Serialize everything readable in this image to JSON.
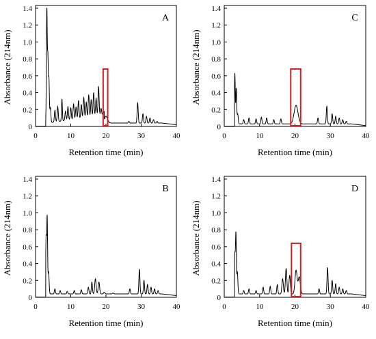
{
  "chart_data": [
    {
      "type": "line",
      "panel_label": "A",
      "xlabel": "Retention time (min)",
      "ylabel": "Absorbance (214nm)",
      "xlim": [
        0,
        40
      ],
      "ylim": [
        0,
        1.4
      ],
      "xticks": [
        "0",
        "10",
        "20",
        "30",
        "40"
      ],
      "yticks": [
        "0",
        "0.2",
        "0.4",
        "0.6",
        "0.8",
        "1.0",
        "1.2",
        "1.4"
      ],
      "grid": false,
      "baseline": 0.04,
      "peaks": [
        {
          "rt": 3.2,
          "h": 1.4,
          "w": 0.12
        },
        {
          "rt": 3.5,
          "h": 0.8,
          "w": 0.12
        },
        {
          "rt": 3.8,
          "h": 0.55,
          "w": 0.12
        },
        {
          "rt": 4.2,
          "h": 0.22,
          "w": 0.15
        },
        {
          "rt": 5.5,
          "h": 0.18,
          "w": 0.15
        },
        {
          "rt": 6.3,
          "h": 0.22,
          "w": 0.15
        },
        {
          "rt": 7.5,
          "h": 0.3,
          "w": 0.12
        },
        {
          "rt": 8.5,
          "h": 0.15,
          "w": 0.15
        },
        {
          "rt": 9.2,
          "h": 0.2,
          "w": 0.15
        },
        {
          "rt": 10.0,
          "h": 0.18,
          "w": 0.15
        },
        {
          "rt": 10.8,
          "h": 0.22,
          "w": 0.15
        },
        {
          "rt": 11.5,
          "h": 0.18,
          "w": 0.15
        },
        {
          "rt": 12.2,
          "h": 0.25,
          "w": 0.15
        },
        {
          "rt": 13.0,
          "h": 0.2,
          "w": 0.15
        },
        {
          "rt": 13.7,
          "h": 0.28,
          "w": 0.15
        },
        {
          "rt": 14.4,
          "h": 0.22,
          "w": 0.15
        },
        {
          "rt": 15.1,
          "h": 0.3,
          "w": 0.15
        },
        {
          "rt": 15.8,
          "h": 0.24,
          "w": 0.15
        },
        {
          "rt": 16.5,
          "h": 0.32,
          "w": 0.15
        },
        {
          "rt": 17.2,
          "h": 0.25,
          "w": 0.15
        },
        {
          "rt": 17.9,
          "h": 0.38,
          "w": 0.15
        },
        {
          "rt": 18.6,
          "h": 0.12,
          "w": 0.15
        },
        {
          "rt": 20.0,
          "h": 0.12,
          "w": 0.45
        },
        {
          "rt": 26.5,
          "h": 0.06,
          "w": 0.15
        },
        {
          "rt": 29.0,
          "h": 0.28,
          "w": 0.15
        },
        {
          "rt": 30.5,
          "h": 0.15,
          "w": 0.15
        },
        {
          "rt": 31.5,
          "h": 0.12,
          "w": 0.15
        },
        {
          "rt": 32.5,
          "h": 0.1,
          "w": 0.15
        },
        {
          "rt": 33.5,
          "h": 0.08,
          "w": 0.15
        },
        {
          "rt": 34.5,
          "h": 0.06,
          "w": 0.15
        }
      ],
      "highlight": {
        "x0": 19.2,
        "x1": 20.5,
        "y0": 0,
        "y1": 0.68
      },
      "highlight_color": "#d22020"
    },
    {
      "type": "line",
      "panel_label": "C",
      "xlabel": "Retention time (min)",
      "ylabel": "Absorbance (214nm)",
      "xlim": [
        0,
        40
      ],
      "ylim": [
        0,
        1.4
      ],
      "xticks": [
        "0",
        "10",
        "20",
        "30",
        "40"
      ],
      "yticks": [
        "0",
        "0.2",
        "0.4",
        "0.6",
        "0.8",
        "1.0",
        "1.2",
        "1.4"
      ],
      "grid": false,
      "baseline": 0.03,
      "peaks": [
        {
          "rt": 3.0,
          "h": 0.63,
          "w": 0.12
        },
        {
          "rt": 3.4,
          "h": 0.45,
          "w": 0.12
        },
        {
          "rt": 3.8,
          "h": 0.15,
          "w": 0.15
        },
        {
          "rt": 5.5,
          "h": 0.08,
          "w": 0.15
        },
        {
          "rt": 7.0,
          "h": 0.1,
          "w": 0.15
        },
        {
          "rt": 9.0,
          "h": 0.09,
          "w": 0.15
        },
        {
          "rt": 10.5,
          "h": 0.11,
          "w": 0.15
        },
        {
          "rt": 12.0,
          "h": 0.1,
          "w": 0.15
        },
        {
          "rt": 14.0,
          "h": 0.08,
          "w": 0.15
        },
        {
          "rt": 16.0,
          "h": 0.09,
          "w": 0.15
        },
        {
          "rt": 20.3,
          "h": 0.25,
          "w": 0.55
        },
        {
          "rt": 26.5,
          "h": 0.1,
          "w": 0.15
        },
        {
          "rt": 29.0,
          "h": 0.24,
          "w": 0.15
        },
        {
          "rt": 30.5,
          "h": 0.15,
          "w": 0.15
        },
        {
          "rt": 31.5,
          "h": 0.12,
          "w": 0.15
        },
        {
          "rt": 32.5,
          "h": 0.1,
          "w": 0.15
        },
        {
          "rt": 33.5,
          "h": 0.08,
          "w": 0.15
        },
        {
          "rt": 34.5,
          "h": 0.06,
          "w": 0.15
        }
      ],
      "highlight": {
        "x0": 18.8,
        "x1": 21.6,
        "y0": 0,
        "y1": 0.68
      },
      "highlight_color": "#d22020"
    },
    {
      "type": "line",
      "panel_label": "B",
      "xlabel": "Retention time (min)",
      "ylabel": "Absorbance (214nm)",
      "xlim": [
        0,
        40
      ],
      "ylim": [
        0,
        1.4
      ],
      "xticks": [
        "0",
        "10",
        "20",
        "30",
        "40"
      ],
      "yticks": [
        "0",
        "0.2",
        "0.4",
        "0.6",
        "0.8",
        "1.0",
        "1.2",
        "1.4"
      ],
      "grid": false,
      "baseline": 0.04,
      "peaks": [
        {
          "rt": 3.0,
          "h": 0.7,
          "w": 0.12
        },
        {
          "rt": 3.3,
          "h": 0.94,
          "w": 0.12
        },
        {
          "rt": 3.7,
          "h": 0.3,
          "w": 0.15
        },
        {
          "rt": 5.5,
          "h": 0.1,
          "w": 0.15
        },
        {
          "rt": 7.0,
          "h": 0.08,
          "w": 0.15
        },
        {
          "rt": 9.0,
          "h": 0.07,
          "w": 0.15
        },
        {
          "rt": 11.0,
          "h": 0.08,
          "w": 0.15
        },
        {
          "rt": 13.0,
          "h": 0.09,
          "w": 0.15
        },
        {
          "rt": 15.0,
          "h": 0.12,
          "w": 0.15
        },
        {
          "rt": 16.0,
          "h": 0.18,
          "w": 0.15
        },
        {
          "rt": 17.0,
          "h": 0.22,
          "w": 0.2
        },
        {
          "rt": 18.0,
          "h": 0.18,
          "w": 0.2
        },
        {
          "rt": 19.5,
          "h": 0.06,
          "w": 0.2
        },
        {
          "rt": 22.0,
          "h": 0.05,
          "w": 0.2
        },
        {
          "rt": 26.8,
          "h": 0.1,
          "w": 0.15
        },
        {
          "rt": 29.5,
          "h": 0.33,
          "w": 0.15
        },
        {
          "rt": 30.8,
          "h": 0.2,
          "w": 0.15
        },
        {
          "rt": 31.8,
          "h": 0.15,
          "w": 0.15
        },
        {
          "rt": 32.8,
          "h": 0.12,
          "w": 0.15
        },
        {
          "rt": 33.8,
          "h": 0.1,
          "w": 0.15
        },
        {
          "rt": 34.8,
          "h": 0.08,
          "w": 0.15
        }
      ]
    },
    {
      "type": "line",
      "panel_label": "D",
      "xlabel": "Retention time (min)",
      "ylabel": "Absorbance (214nm)",
      "xlim": [
        0,
        40
      ],
      "ylim": [
        0,
        1.4
      ],
      "xticks": [
        "0",
        "10",
        "20",
        "30",
        "40"
      ],
      "yticks": [
        "0",
        "0.2",
        "0.4",
        "0.6",
        "0.8",
        "1.0",
        "1.2",
        "1.4"
      ],
      "grid": false,
      "baseline": 0.04,
      "peaks": [
        {
          "rt": 3.0,
          "h": 0.5,
          "w": 0.12
        },
        {
          "rt": 3.3,
          "h": 0.75,
          "w": 0.12
        },
        {
          "rt": 3.7,
          "h": 0.3,
          "w": 0.15
        },
        {
          "rt": 5.5,
          "h": 0.08,
          "w": 0.15
        },
        {
          "rt": 7.0,
          "h": 0.1,
          "w": 0.15
        },
        {
          "rt": 9.0,
          "h": 0.08,
          "w": 0.15
        },
        {
          "rt": 11.0,
          "h": 0.12,
          "w": 0.15
        },
        {
          "rt": 13.0,
          "h": 0.13,
          "w": 0.15
        },
        {
          "rt": 15.0,
          "h": 0.15,
          "w": 0.15
        },
        {
          "rt": 16.5,
          "h": 0.22,
          "w": 0.2
        },
        {
          "rt": 17.5,
          "h": 0.34,
          "w": 0.2
        },
        {
          "rt": 18.5,
          "h": 0.26,
          "w": 0.2
        },
        {
          "rt": 20.3,
          "h": 0.32,
          "w": 0.3
        },
        {
          "rt": 21.2,
          "h": 0.24,
          "w": 0.3
        },
        {
          "rt": 26.8,
          "h": 0.1,
          "w": 0.15
        },
        {
          "rt": 29.2,
          "h": 0.35,
          "w": 0.15
        },
        {
          "rt": 30.5,
          "h": 0.2,
          "w": 0.15
        },
        {
          "rt": 31.5,
          "h": 0.16,
          "w": 0.15
        },
        {
          "rt": 32.5,
          "h": 0.12,
          "w": 0.15
        },
        {
          "rt": 33.5,
          "h": 0.1,
          "w": 0.15
        },
        {
          "rt": 34.5,
          "h": 0.08,
          "w": 0.15
        }
      ],
      "highlight": {
        "x0": 19.0,
        "x1": 21.6,
        "y0": 0,
        "y1": 0.64
      },
      "highlight_color": "#d22020"
    }
  ]
}
